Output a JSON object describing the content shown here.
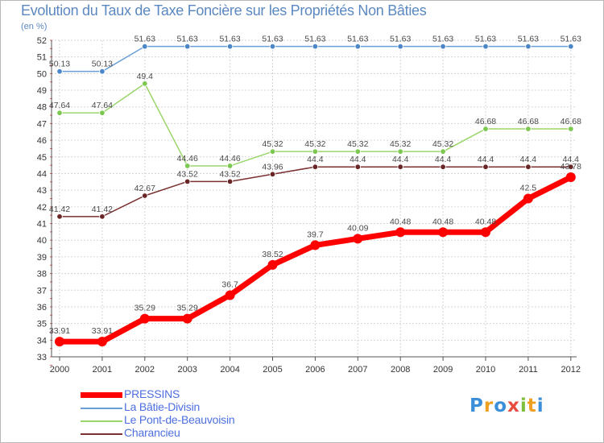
{
  "title": "Evolution du Taux de Taxe Foncière sur les Propriétés Non Bâties",
  "unit_label": "(en %)",
  "logo_text": "Proxiti",
  "logo_colors": [
    "#3b8fd8",
    "#f0a020",
    "#3b8fd8",
    "#e84c3d",
    "#7cbf3a",
    "#f0a020",
    "#3b8fd8"
  ],
  "chart_data": {
    "type": "line",
    "title": "Evolution du Taux de Taxe Foncière sur les Propriétés Non Bâties",
    "xlabel": "",
    "ylabel": "(en %)",
    "ylim": [
      33,
      52
    ],
    "yticks": [
      33,
      34,
      35,
      36,
      37,
      38,
      39,
      40,
      41,
      42,
      43,
      44,
      45,
      46,
      47,
      48,
      49,
      50,
      51,
      52
    ],
    "x": [
      "2000",
      "2001",
      "2002",
      "2003",
      "2004",
      "2005",
      "2006",
      "2007",
      "2008",
      "2009",
      "2010",
      "2011",
      "2012"
    ],
    "series": [
      {
        "name": "La Bâtie-Divisin",
        "color": "#6a9fd6",
        "marker": "#4a86c8",
        "values": [
          50.13,
          50.13,
          51.63,
          51.63,
          51.63,
          51.63,
          51.63,
          51.63,
          51.63,
          51.63,
          51.63,
          51.63,
          51.63
        ],
        "labels": [
          "50.13",
          "50.13",
          "51.63",
          "51.63",
          "51.63",
          "51.63",
          "51.63",
          "51.63",
          "51.63",
          "51.63",
          "51.63",
          "51.63",
          "51.63"
        ]
      },
      {
        "name": "Le Pont-de-Beauvoisin",
        "color": "#9ad66a",
        "marker": "#7cc850",
        "values": [
          47.64,
          47.64,
          49.4,
          44.46,
          44.46,
          45.32,
          45.32,
          45.32,
          45.32,
          45.32,
          46.68,
          46.68,
          46.68
        ],
        "labels": [
          "47.64",
          "47.64",
          "49.4",
          "44.46",
          "44.46",
          "45.32",
          "45.32",
          "45.32",
          "45.32",
          "45.32",
          "46.68",
          "46.68",
          "46.68"
        ]
      },
      {
        "name": "Charancieu",
        "color": "#7a3030",
        "marker": "#6a2626",
        "values": [
          41.42,
          41.42,
          42.67,
          43.52,
          43.52,
          43.96,
          44.4,
          44.4,
          44.4,
          44.4,
          44.4,
          44.4,
          44.4
        ],
        "labels": [
          "41.42",
          "41.42",
          "42.67",
          "43.52",
          "43.52",
          "43.96",
          "44.4",
          "44.4",
          "44.4",
          "44.4",
          "44.4",
          "44.4",
          "44.4"
        ]
      },
      {
        "name": "PRESSINS",
        "color": "#ff0000",
        "marker": "#ff0000",
        "values": [
          33.91,
          33.91,
          35.29,
          35.29,
          36.7,
          38.52,
          39.7,
          40.09,
          40.48,
          40.48,
          40.48,
          42.5,
          43.78
        ],
        "labels": [
          "33.91",
          "33.91",
          "35.29",
          "35.29",
          "36.7",
          "38.52",
          "39.7",
          "40.09",
          "40.48",
          "40.48",
          "40.48",
          "42.5",
          "43.78"
        ]
      }
    ],
    "legend": [
      "PRESSINS",
      "La Bâtie-Divisin",
      "Le Pont-de-Beauvoisin",
      "Charancieu"
    ]
  }
}
